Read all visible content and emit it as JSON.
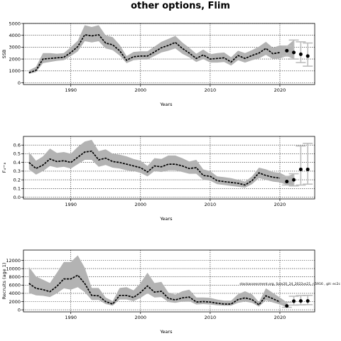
{
  "figure": {
    "title": "other options, Flim",
    "watermark": "stockassessment.org, Sole20_24_2022vs21, r.5916 , git: ec2c"
  },
  "chart_data": [
    {
      "type": "line",
      "name": "ssb-panel",
      "xlabel": "Years",
      "ylabel": "SSB",
      "xlim": [
        1983.2,
        2025.0
      ],
      "ylim": [
        -150,
        5000
      ],
      "xticks": [
        1990,
        2000,
        2010,
        2020
      ],
      "yticks": [
        0,
        1000,
        2000,
        3000,
        4000,
        5000
      ],
      "ytick_labels": [
        "0",
        "1000",
        "2000",
        "3000",
        "4000",
        "5000"
      ],
      "grid": true,
      "x": [
        1984,
        1985,
        1986,
        1987,
        1988,
        1989,
        1990,
        1991,
        1992,
        1993,
        1994,
        1995,
        1996,
        1997,
        1998,
        1999,
        2000,
        2001,
        2002,
        2003,
        2004,
        2005,
        2006,
        2007,
        2008,
        2009,
        2010,
        2011,
        2012,
        2013,
        2014,
        2015,
        2016,
        2017,
        2018,
        2019,
        2020
      ],
      "estimate": [
        850,
        1050,
        2000,
        2050,
        2100,
        2150,
        2550,
        3050,
        4050,
        3950,
        4050,
        3350,
        3200,
        2700,
        1900,
        2200,
        2250,
        2250,
        2600,
        2950,
        3150,
        3400,
        2900,
        2500,
        2050,
        2350,
        2000,
        2050,
        2100,
        1750,
        2300,
        2050,
        2300,
        2500,
        2900,
        2450,
        2550
      ],
      "lower": [
        750,
        900,
        1650,
        1750,
        1850,
        1900,
        2250,
        2650,
        3500,
        3400,
        3500,
        2900,
        2750,
        2300,
        1650,
        1900,
        1950,
        1950,
        2250,
        2550,
        2700,
        2900,
        2450,
        2150,
        1750,
        2000,
        1700,
        1700,
        1750,
        1450,
        1900,
        1700,
        1900,
        2050,
        2350,
        2000,
        2050
      ],
      "upper": [
        1050,
        1350,
        2500,
        2500,
        2450,
        2500,
        3000,
        3550,
        4850,
        4700,
        4850,
        4000,
        3850,
        3200,
        2250,
        2600,
        2650,
        2650,
        3050,
        3450,
        3700,
        3950,
        3400,
        2950,
        2450,
        2800,
        2400,
        2500,
        2550,
        2150,
        2700,
        2500,
        2750,
        3050,
        3450,
        2950,
        3150
      ],
      "forecast": {
        "x": [
          2021,
          2022,
          2023,
          2024
        ],
        "estimate": [
          2700,
          2550,
          2400,
          2250
        ],
        "lower": [
          2250,
          2000,
          1700,
          1400
        ],
        "upper": [
          3100,
          3600,
          3450,
          3350
        ],
        "fill": [
          true,
          true,
          false,
          false
        ]
      }
    },
    {
      "type": "line",
      "name": "fbar-panel",
      "xlabel": "Years",
      "ylabel": "F₄−₈",
      "xlim": [
        1983.2,
        2025.0
      ],
      "ylim": [
        -0.02,
        0.7
      ],
      "xticks": [
        1990,
        2000,
        2010,
        2020
      ],
      "yticks": [
        0.0,
        0.1,
        0.2,
        0.3,
        0.4,
        0.5,
        0.6
      ],
      "ytick_labels": [
        "0.0",
        "0.1",
        "0.2",
        "0.3",
        "0.4",
        "0.5",
        "0.6"
      ],
      "grid": true,
      "x": [
        1984,
        1985,
        1986,
        1987,
        1988,
        1989,
        1990,
        1991,
        1992,
        1993,
        1994,
        1995,
        1996,
        1997,
        1998,
        1999,
        2000,
        2001,
        2002,
        2003,
        2004,
        2005,
        2006,
        2007,
        2008,
        2009,
        2010,
        2011,
        2012,
        2013,
        2014,
        2015,
        2016,
        2017,
        2018,
        2019,
        2020
      ],
      "estimate": [
        0.4,
        0.33,
        0.37,
        0.44,
        0.41,
        0.42,
        0.4,
        0.46,
        0.52,
        0.53,
        0.43,
        0.45,
        0.41,
        0.4,
        0.38,
        0.36,
        0.34,
        0.29,
        0.36,
        0.35,
        0.38,
        0.38,
        0.36,
        0.33,
        0.34,
        0.25,
        0.24,
        0.19,
        0.18,
        0.17,
        0.16,
        0.14,
        0.19,
        0.28,
        0.25,
        0.23,
        0.22
      ],
      "lower": [
        0.32,
        0.26,
        0.3,
        0.36,
        0.34,
        0.35,
        0.33,
        0.38,
        0.43,
        0.43,
        0.35,
        0.37,
        0.34,
        0.33,
        0.31,
        0.3,
        0.28,
        0.24,
        0.3,
        0.29,
        0.31,
        0.31,
        0.29,
        0.27,
        0.27,
        0.2,
        0.19,
        0.15,
        0.14,
        0.13,
        0.12,
        0.11,
        0.15,
        0.22,
        0.2,
        0.18,
        0.17
      ],
      "upper": [
        0.52,
        0.42,
        0.47,
        0.56,
        0.51,
        0.52,
        0.5,
        0.58,
        0.64,
        0.66,
        0.53,
        0.55,
        0.5,
        0.49,
        0.47,
        0.44,
        0.42,
        0.36,
        0.45,
        0.44,
        0.48,
        0.48,
        0.45,
        0.41,
        0.43,
        0.32,
        0.3,
        0.24,
        0.23,
        0.22,
        0.2,
        0.18,
        0.24,
        0.34,
        0.32,
        0.29,
        0.28
      ],
      "forecast": {
        "x": [
          2021,
          2022,
          2023,
          2024
        ],
        "estimate": [
          0.18,
          0.2,
          0.32,
          0.32
        ],
        "lower": [
          0.14,
          0.13,
          0.14,
          0.15
        ],
        "upper": [
          0.24,
          0.27,
          0.59,
          0.62
        ],
        "fill": [
          true,
          true,
          false,
          false
        ]
      }
    },
    {
      "type": "line",
      "name": "recruits-panel",
      "xlabel": "Years",
      "ylabel": "Recruits (age 1)",
      "xlim": [
        1983.2,
        2025.0
      ],
      "ylim": [
        -500,
        14500
      ],
      "xticks": [
        1990,
        2000,
        2010,
        2020
      ],
      "yticks": [
        0,
        2000,
        4000,
        6000,
        8000,
        10000,
        12000
      ],
      "ytick_labels": [
        "0",
        "2000",
        "4000",
        "6000",
        "8000",
        "10000",
        "12000"
      ],
      "grid": true,
      "x": [
        1984,
        1985,
        1986,
        1987,
        1988,
        1989,
        1990,
        1991,
        1992,
        1993,
        1994,
        1995,
        1996,
        1997,
        1998,
        1999,
        2000,
        2001,
        2002,
        2003,
        2004,
        2005,
        2006,
        2007,
        2008,
        2009,
        2010,
        2011,
        2012,
        2013,
        2014,
        2015,
        2016,
        2017,
        2018,
        2019,
        2020
      ],
      "estimate": [
        6400,
        5200,
        4900,
        4400,
        5700,
        7500,
        7500,
        8400,
        6400,
        3500,
        3400,
        2000,
        1400,
        3500,
        3500,
        3000,
        4200,
        5800,
        4300,
        4500,
        2800,
        2400,
        2900,
        3100,
        1900,
        2000,
        1900,
        1600,
        1400,
        1400,
        2500,
        2900,
        2500,
        1200,
        3400,
        2700,
        1900
      ],
      "lower": [
        4100,
        3500,
        3400,
        3100,
        4000,
        5200,
        4900,
        5500,
        4300,
        2400,
        2400,
        1400,
        1000,
        2500,
        2500,
        2100,
        2900,
        4000,
        3000,
        3100,
        1900,
        1700,
        2000,
        2100,
        1300,
        1400,
        1300,
        1100,
        1000,
        1000,
        1700,
        2000,
        1700,
        800,
        2300,
        1800,
        1300
      ],
      "upper": [
        10400,
        8100,
        7300,
        6500,
        9000,
        11600,
        11600,
        13200,
        10200,
        5300,
        5300,
        3000,
        2100,
        5300,
        5500,
        4700,
        6500,
        9000,
        6500,
        6800,
        4200,
        3700,
        4500,
        4900,
        3000,
        3000,
        2900,
        2500,
        2200,
        2200,
        3800,
        4500,
        3800,
        1900,
        5200,
        4100,
        3000
      ],
      "forecast": {
        "x": [
          2021,
          2022,
          2023,
          2024
        ],
        "estimate": [
          950,
          2100,
          2150,
          2150
        ],
        "lower": [
          600,
          1150,
          1200,
          1250
        ],
        "upper": [
          1800,
          3300,
          3450,
          3500
        ],
        "fill": [
          true,
          false,
          false,
          false
        ]
      }
    }
  ]
}
